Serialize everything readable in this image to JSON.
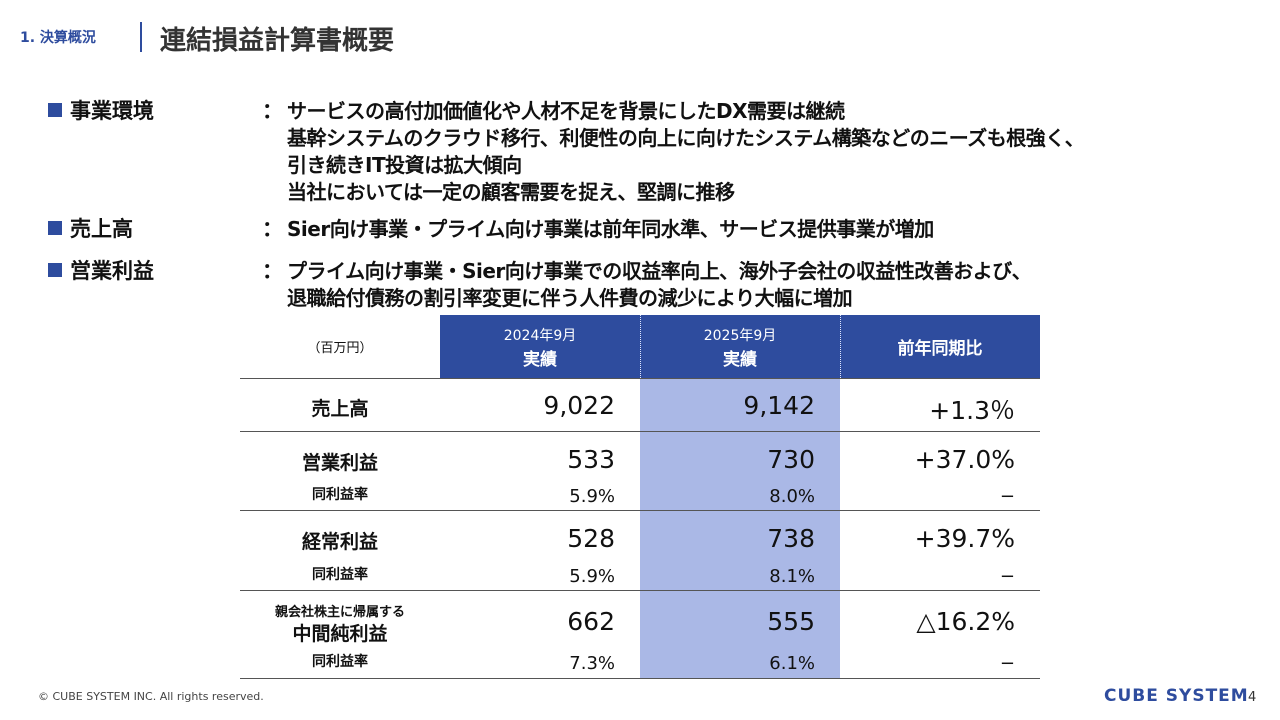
{
  "header": {
    "section": "1. 決算概況",
    "title": "連結損益計算書概要"
  },
  "bullets": [
    {
      "label": "事業環境",
      "separator": "：",
      "lines": [
        "サービスの高付加価値化や人材不足を背景にしたDX需要は継続",
        "基幹システムのクラウド移行、利便性の向上に向けたシステム構築などのニーズも根強く、",
        "引き続きIT投資は拡大傾向",
        "当社においては一定の顧客需要を捉え、堅調に推移"
      ]
    },
    {
      "label": "売上高",
      "separator": "：",
      "lines": [
        "Sier向け事業・プライム向け事業は前年同水準、サービス提供事業が増加"
      ]
    },
    {
      "label": "営業利益",
      "separator": "：",
      "lines": [
        "プライム向け事業・Sier向け事業での収益率向上、海外子会社の収益性改善および、",
        "退職給付債務の割引率変更に伴う人件費の減少により大幅に増加"
      ]
    }
  ],
  "table": {
    "unit": "（百万円）",
    "columns": [
      {
        "period": "2024年9月",
        "kind": "実績"
      },
      {
        "period": "2025年9月",
        "kind": "実績"
      },
      {
        "period": "前年同期比"
      }
    ],
    "rows": [
      {
        "label": "売上高",
        "values": [
          "9,022",
          "9,142",
          "+1.3％"
        ]
      },
      {
        "label": "営業利益",
        "values": [
          "533",
          "730",
          "+37.0%"
        ],
        "sub": {
          "label": "同利益率",
          "values": [
            "5.9%",
            "8.0%",
            "−"
          ]
        }
      },
      {
        "label": "経常利益",
        "values": [
          "528",
          "738",
          "+39.7%"
        ],
        "sub": {
          "label": "同利益率",
          "values": [
            "5.9%",
            "8.1%",
            "−"
          ]
        }
      },
      {
        "label_small": "親会社株主に帰属する",
        "label": "中間純利益",
        "values": [
          "662",
          "555",
          "△16.2%"
        ],
        "sub": {
          "label": "同利益率",
          "values": [
            "7.3%",
            "6.1%",
            "−"
          ]
        }
      }
    ]
  },
  "footer": {
    "copyright": "© CUBE SYSTEM INC. All rights reserved.",
    "logo": "CUBE SYSTEM",
    "page": "4"
  }
}
